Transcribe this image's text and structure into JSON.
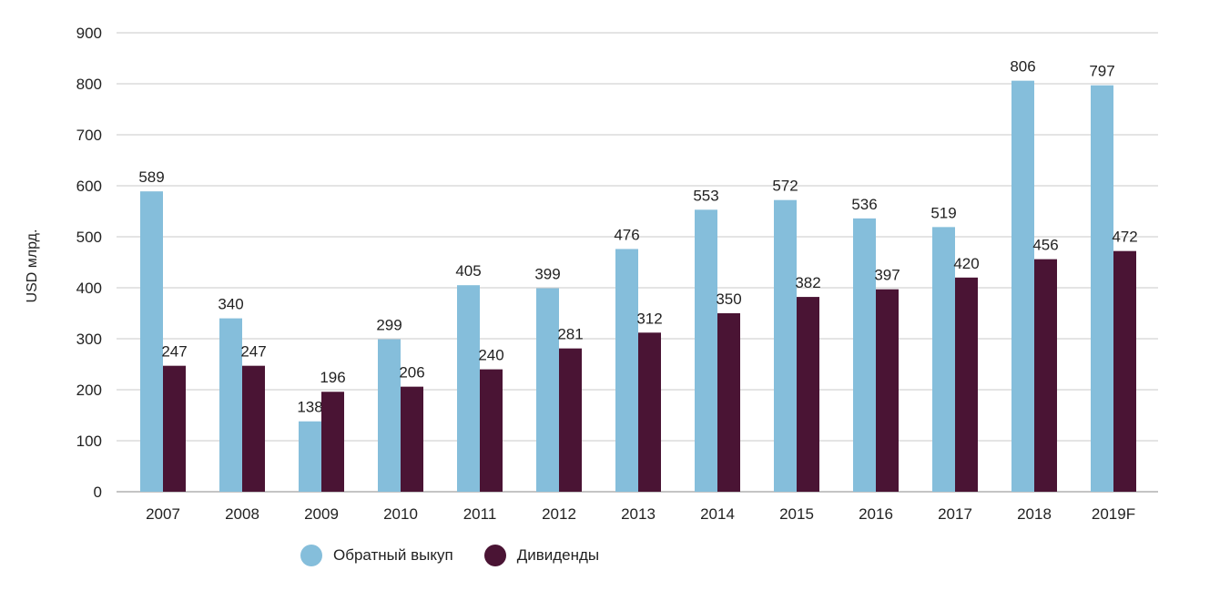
{
  "chart_data": {
    "type": "bar",
    "categories": [
      "2007",
      "2008",
      "2009",
      "2010",
      "2011",
      "2012",
      "2013",
      "2014",
      "2015",
      "2016",
      "2017",
      "2018",
      "2019F"
    ],
    "series": [
      {
        "name": "Обратный выкуп",
        "color": "#85bedb",
        "values": [
          589,
          340,
          138,
          299,
          405,
          399,
          476,
          553,
          572,
          536,
          519,
          806,
          797
        ]
      },
      {
        "name": "Дивиденды",
        "color": "#4a1434",
        "values": [
          247,
          247,
          196,
          206,
          240,
          281,
          312,
          350,
          382,
          397,
          420,
          456,
          472
        ]
      }
    ],
    "ylabel": "USD млрд.",
    "ylim": [
      0,
      900
    ],
    "yticks": [
      "0",
      "100",
      "200",
      "300",
      "400",
      "500",
      "600",
      "700",
      "800",
      "900"
    ],
    "grid": true,
    "legend_position": "bottom"
  }
}
